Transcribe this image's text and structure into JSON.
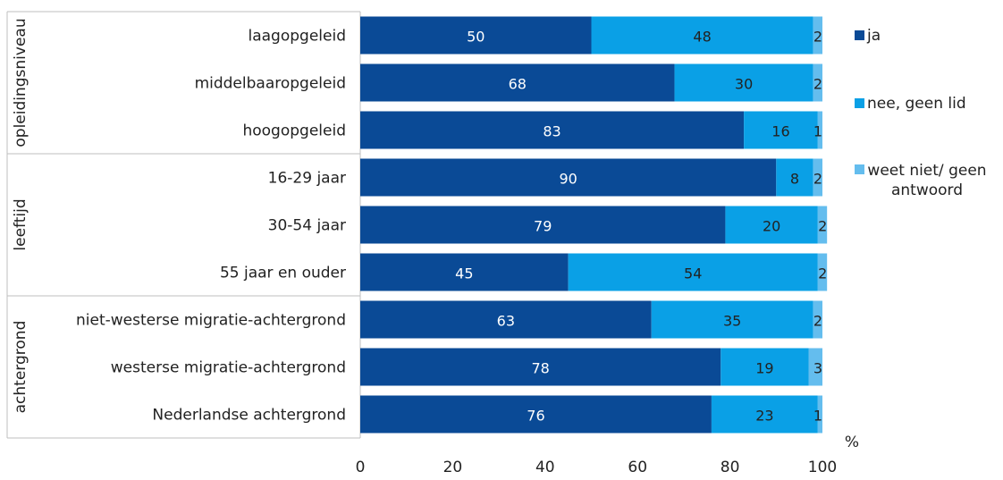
{
  "chart_data": {
    "type": "bar",
    "orientation": "horizontal",
    "stacked": true,
    "categories": [
      "laagopgeleid",
      "middelbaaropgeleid",
      "hoogopgeleid",
      "16-29 jaar",
      "30-54 jaar",
      "55 jaar en ouder",
      "niet-westerse migratie-achtergrond",
      "westerse migratie-achtergrond",
      "Nederlandse achtergrond"
    ],
    "groups": [
      {
        "label": "opleidingsniveau",
        "categories": [
          "laagopgeleid",
          "middelbaaropgeleid",
          "hoogopgeleid"
        ]
      },
      {
        "label": "leeftijd",
        "categories": [
          "16-29 jaar",
          "30-54 jaar",
          "55 jaar en ouder"
        ]
      },
      {
        "label": "achtergrond",
        "categories": [
          "niet-westerse migratie-achtergrond",
          "westerse migratie-achtergrond",
          "Nederlandse achtergrond"
        ]
      }
    ],
    "series": [
      {
        "name": "ja",
        "color": "#0a4a96",
        "values": [
          50,
          68,
          83,
          90,
          79,
          45,
          63,
          78,
          76
        ]
      },
      {
        "name": "nee, geen lid",
        "color": "#0aa0e6",
        "values": [
          48,
          30,
          16,
          8,
          20,
          54,
          35,
          19,
          23
        ]
      },
      {
        "name": "weet niet/ geen antwoord",
        "color": "#64bdee",
        "values": [
          2,
          2,
          1,
          2,
          2,
          2,
          2,
          3,
          1
        ]
      }
    ],
    "xlim": [
      0,
      100
    ],
    "xticks": [
      "0",
      "20",
      "40",
      "60",
      "80",
      "100"
    ],
    "xlabel": "%",
    "legend_position": "right",
    "grid": false
  }
}
